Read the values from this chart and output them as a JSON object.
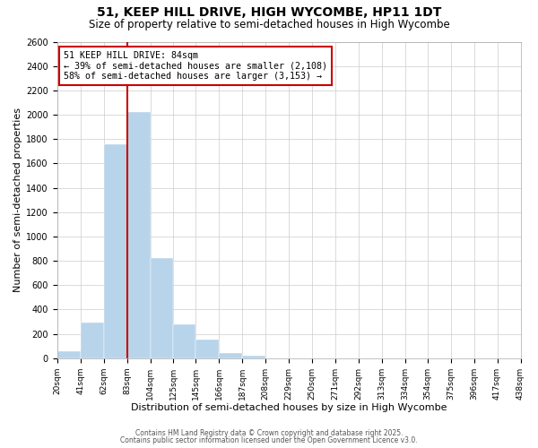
{
  "title": "51, KEEP HILL DRIVE, HIGH WYCOMBE, HP11 1DT",
  "subtitle": "Size of property relative to semi-detached houses in High Wycombe",
  "xlabel": "Distribution of semi-detached houses by size in High Wycombe",
  "ylabel": "Number of semi-detached properties",
  "bin_edges": [
    20,
    41,
    62,
    83,
    104,
    125,
    145,
    166,
    187,
    208,
    229,
    250,
    271,
    292,
    313,
    334,
    354,
    375,
    396,
    417,
    438
  ],
  "bin_heights": [
    55,
    290,
    1760,
    2020,
    820,
    280,
    155,
    45,
    20,
    0,
    0,
    0,
    0,
    0,
    0,
    0,
    0,
    0,
    0,
    0
  ],
  "bar_color": "#b8d4ea",
  "bar_edgecolor": "#b8d4ea",
  "property_line_x": 83,
  "property_line_color": "#cc0000",
  "annotation_line1": "51 KEEP HILL DRIVE: 84sqm",
  "annotation_line2": "← 39% of semi-detached houses are smaller (2,108)",
  "annotation_line3": "58% of semi-detached houses are larger (3,153) →",
  "annotation_box_edgecolor": "#cc0000",
  "annotation_box_facecolor": "#ffffff",
  "ylim": [
    0,
    2600
  ],
  "yticks": [
    0,
    200,
    400,
    600,
    800,
    1000,
    1200,
    1400,
    1600,
    1800,
    2000,
    2200,
    2400,
    2600
  ],
  "tick_labels": [
    "20sqm",
    "41sqm",
    "62sqm",
    "83sqm",
    "104sqm",
    "125sqm",
    "145sqm",
    "166sqm",
    "187sqm",
    "208sqm",
    "229sqm",
    "250sqm",
    "271sqm",
    "292sqm",
    "313sqm",
    "334sqm",
    "354sqm",
    "375sqm",
    "396sqm",
    "417sqm",
    "438sqm"
  ],
  "footnote1": "Contains HM Land Registry data © Crown copyright and database right 2025.",
  "footnote2": "Contains public sector information licensed under the Open Government Licence v3.0.",
  "title_fontsize": 10,
  "subtitle_fontsize": 8.5,
  "grid_color": "#cccccc",
  "background_color": "#ffffff"
}
